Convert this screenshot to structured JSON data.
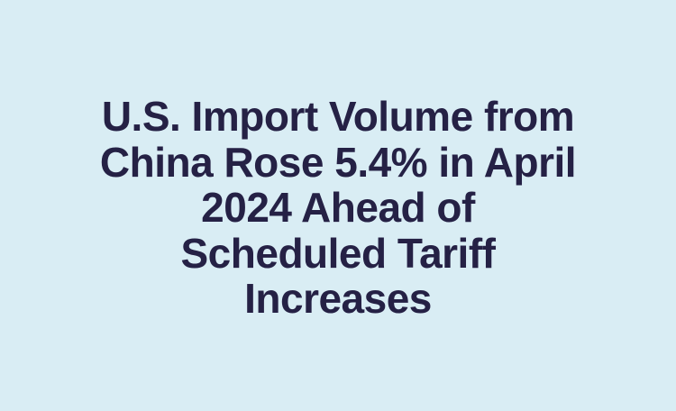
{
  "colors": {
    "background": "#d9edf4",
    "headline_text": "#252145"
  },
  "headline": {
    "lines": [
      "U.S. Import Volume from",
      "China Rose 5.4% in April",
      "2024 Ahead of",
      "Scheduled Tariff",
      "Increases"
    ]
  }
}
